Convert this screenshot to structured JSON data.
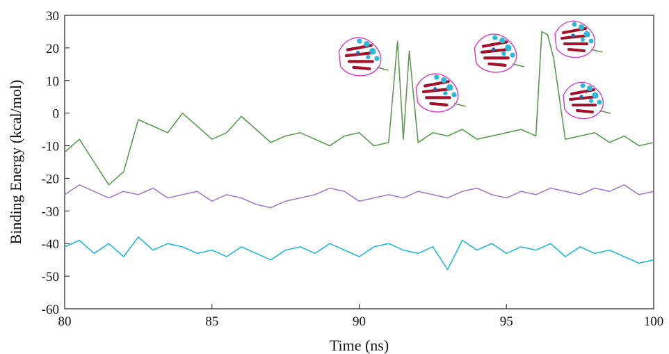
{
  "chart_data": {
    "type": "line",
    "xlabel": "Time (ns)",
    "ylabel": "Binding Energy (kcal/mol)",
    "xlim": [
      80,
      100
    ],
    "ylim": [
      -60,
      30
    ],
    "xticks": [
      80,
      85,
      90,
      95,
      100
    ],
    "yticks": [
      -60,
      -50,
      -40,
      -30,
      -20,
      -10,
      0,
      10,
      20,
      30
    ],
    "grid": false,
    "legend": "none",
    "series": [
      {
        "color": "#5a9a52",
        "x": [
          80.0,
          80.5,
          81.0,
          81.5,
          82.0,
          82.5,
          83.0,
          83.5,
          84.0,
          84.5,
          85.0,
          85.5,
          86.0,
          86.5,
          87.0,
          87.5,
          88.0,
          88.5,
          89.0,
          89.5,
          90.0,
          90.5,
          91.0,
          91.3,
          91.5,
          91.7,
          92.0,
          92.5,
          93.0,
          93.5,
          94.0,
          94.5,
          95.0,
          95.5,
          96.0,
          96.2,
          96.4,
          96.6,
          97.0,
          97.5,
          98.0,
          98.5,
          99.0,
          99.5,
          100.0
        ],
        "y": [
          -12,
          -8,
          -15,
          -22,
          -18,
          -2,
          -4,
          -6,
          0,
          -4,
          -8,
          -6,
          -1,
          -5,
          -9,
          -7,
          -6,
          -8,
          -10,
          -7,
          -6,
          -10,
          -9,
          22,
          -8,
          19,
          -9,
          -6,
          -7,
          -5,
          -8,
          -7,
          -6,
          -5,
          -7,
          25,
          24,
          17,
          -8,
          -7,
          -6,
          -9,
          -7,
          -10,
          -9
        ]
      },
      {
        "color": "#9b7ec6",
        "x": [
          80.0,
          80.5,
          81.0,
          81.5,
          82.0,
          82.5,
          83.0,
          83.5,
          84.0,
          84.5,
          85.0,
          85.5,
          86.0,
          86.5,
          87.0,
          87.5,
          88.0,
          88.5,
          89.0,
          89.5,
          90.0,
          90.5,
          91.0,
          91.5,
          92.0,
          92.5,
          93.0,
          93.5,
          94.0,
          94.5,
          95.0,
          95.5,
          96.0,
          96.5,
          97.0,
          97.5,
          98.0,
          98.5,
          99.0,
          99.5,
          100.0
        ],
        "y": [
          -25,
          -22,
          -24,
          -26,
          -24,
          -25,
          -23,
          -26,
          -25,
          -24,
          -27,
          -25,
          -26,
          -28,
          -29,
          -27,
          -26,
          -25,
          -23,
          -24,
          -27,
          -26,
          -25,
          -26,
          -24,
          -25,
          -26,
          -24,
          -23,
          -25,
          -26,
          -24,
          -25,
          -23,
          -24,
          -25,
          -23,
          -24,
          -22,
          -25,
          -24
        ]
      },
      {
        "color": "#22b8d0",
        "x": [
          80.0,
          80.5,
          81.0,
          81.5,
          82.0,
          82.5,
          83.0,
          83.5,
          84.0,
          84.5,
          85.0,
          85.5,
          86.0,
          86.5,
          87.0,
          87.5,
          88.0,
          88.5,
          89.0,
          89.5,
          90.0,
          90.5,
          91.0,
          91.5,
          92.0,
          92.5,
          93.0,
          93.5,
          94.0,
          94.5,
          95.0,
          95.5,
          96.0,
          96.5,
          97.0,
          97.5,
          98.0,
          98.5,
          99.0,
          99.5,
          100.0
        ],
        "y": [
          -41,
          -39,
          -43,
          -40,
          -44,
          -38,
          -42,
          -40,
          -41,
          -43,
          -42,
          -44,
          -41,
          -43,
          -45,
          -42,
          -41,
          -43,
          -40,
          -42,
          -44,
          -41,
          -40,
          -42,
          -43,
          -41,
          -48,
          -39,
          -42,
          -40,
          -43,
          -41,
          -42,
          -40,
          -44,
          -41,
          -43,
          -42,
          -44,
          -46,
          -45
        ]
      }
    ]
  },
  "icons": {
    "inset_images": "protein-structure-icon"
  }
}
